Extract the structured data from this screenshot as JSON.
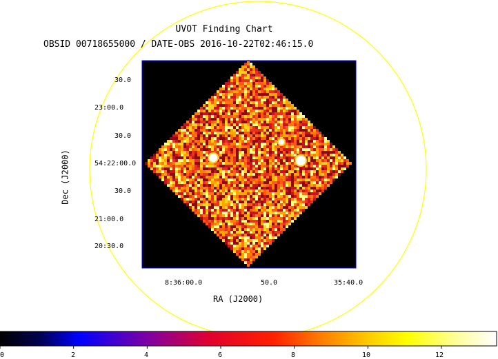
{
  "title": "UVOT Finding Chart",
  "subtitle": "OBSID 00718655000 / DATE-OBS 2016-10-22T02:46:15.0",
  "chart_data": {
    "type": "heatmap",
    "title": "UVOT Finding Chart",
    "subtitle": "OBSID 00718655000 / DATE-OBS 2016-10-22T02:46:15.0",
    "xlabel": "RA (J2000)",
    "ylabel": "Dec (J2000)",
    "x_ticks": [
      "8:36:00.0",
      "50.0",
      "35:40.0"
    ],
    "y_ticks": [
      "30.0",
      "23:00.0",
      "30.0",
      "54:22:00.0",
      "30.0",
      "21:00.0",
      "20:30.0"
    ],
    "colorbar": {
      "ticks": [
        "0",
        "2",
        "4",
        "6",
        "8",
        "10",
        "12"
      ],
      "range": [
        0,
        13.5
      ],
      "colors": [
        "#000000",
        "#0000ff",
        "#ff0000",
        "#ffff00",
        "#ffffff"
      ]
    },
    "image": {
      "shape": "diamond",
      "background": "#000000",
      "noise_colors": [
        "#8b0a14",
        "#c8141e",
        "#e8321e",
        "#ff5a14",
        "#ff7a0a",
        "#ffa500",
        "#ffd21e",
        "#ffff8c"
      ],
      "sources": [
        {
          "ra": "8:35:53.4",
          "dec": "54:22:09",
          "brightness": "bright"
        },
        {
          "ra": "8:35:44.8",
          "dec": "54:22:00",
          "brightness": "bright"
        },
        {
          "ra": "8:35:48.0",
          "dec": "54:22:40",
          "brightness": "medium"
        }
      ]
    },
    "overlay_circle_color": "#ffff00",
    "frame_color": "#0000ff",
    "grid": false
  }
}
